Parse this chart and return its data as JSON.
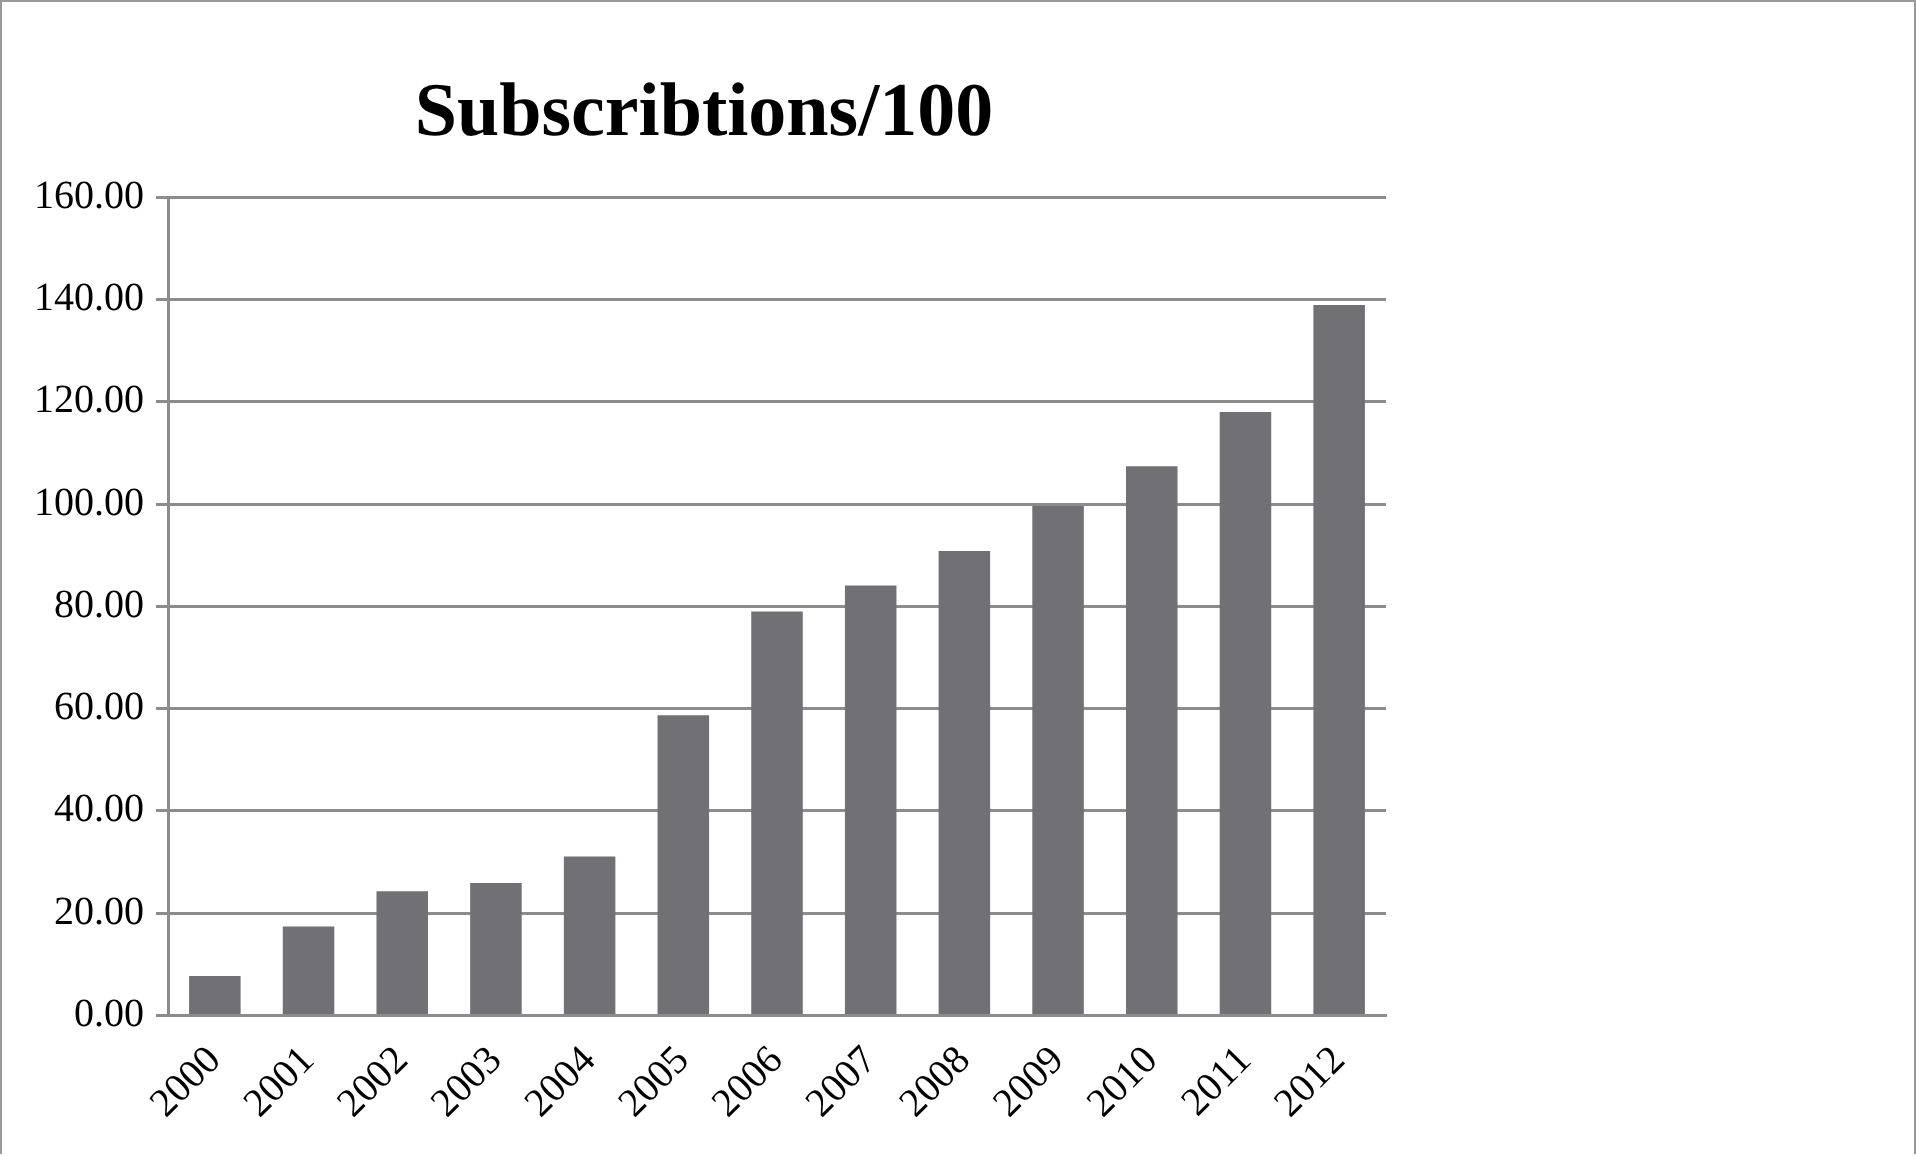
{
  "chart_data": {
    "type": "bar",
    "title": "Subscribtions/100",
    "categories": [
      "2000",
      "2001",
      "2002",
      "2003",
      "2004",
      "2005",
      "2006",
      "2007",
      "2008",
      "2009",
      "2010",
      "2011",
      "2012"
    ],
    "values": [
      7.7,
      17.4,
      24.3,
      25.9,
      31.1,
      58.7,
      79.0,
      84.1,
      90.8,
      99.6,
      107.4,
      118.0,
      138.9
    ],
    "color": "#717075",
    "ylim": [
      0,
      160
    ],
    "yticks": [
      {
        "value": 0,
        "label": "0.00"
      },
      {
        "value": 20,
        "label": "20.00"
      },
      {
        "value": 40,
        "label": "40.00"
      },
      {
        "value": 60,
        "label": "60.00"
      },
      {
        "value": 80,
        "label": "80.00"
      },
      {
        "value": 100,
        "label": "100.00"
      },
      {
        "value": 120,
        "label": "120.00"
      },
      {
        "value": 140,
        "label": "140.00"
      },
      {
        "value": 160,
        "label": "160.00"
      }
    ],
    "grid": "y",
    "legend": false
  }
}
